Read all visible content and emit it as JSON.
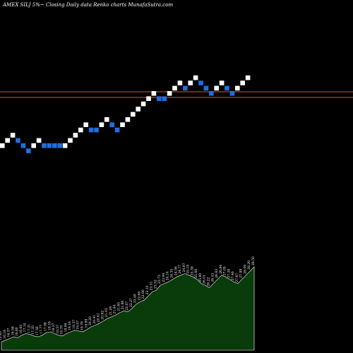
{
  "header": {
    "text": "AMEX  SILJ 5%~  Closing Daily data  Renko  charts MunafaSutra.com"
  },
  "chart_data": {
    "type": "renko",
    "colors": {
      "up": "#ffffff",
      "down": "#1e6fe0",
      "reference_lines": "#c8641e",
      "volume_fill": "#0a3b0a",
      "volume_stroke": "#ffffff"
    },
    "reference_lines": [
      {
        "price_level": 0.62
      },
      {
        "price_level": 0.594
      }
    ],
    "bricks": [
      {
        "dir": "up",
        "level": 0
      },
      {
        "dir": "up",
        "level": 1
      },
      {
        "dir": "up",
        "level": 2
      },
      {
        "dir": "down",
        "level": 1
      },
      {
        "dir": "down",
        "level": 0
      },
      {
        "dir": "down",
        "level": -1
      },
      {
        "dir": "up",
        "level": 0
      },
      {
        "dir": "up",
        "level": 1
      },
      {
        "dir": "down",
        "level": 0
      },
      {
        "dir": "down",
        "level": 0
      },
      {
        "dir": "down",
        "level": 0
      },
      {
        "dir": "down",
        "level": 0
      },
      {
        "dir": "up",
        "level": 0
      },
      {
        "dir": "up",
        "level": 1
      },
      {
        "dir": "up",
        "level": 2
      },
      {
        "dir": "up",
        "level": 3
      },
      {
        "dir": "up",
        "level": 4
      },
      {
        "dir": "down",
        "level": 3
      },
      {
        "dir": "down",
        "level": 3
      },
      {
        "dir": "up",
        "level": 4
      },
      {
        "dir": "up",
        "level": 5
      },
      {
        "dir": "down",
        "level": 4
      },
      {
        "dir": "down",
        "level": 3
      },
      {
        "dir": "up",
        "level": 4
      },
      {
        "dir": "up",
        "level": 5
      },
      {
        "dir": "up",
        "level": 6
      },
      {
        "dir": "up",
        "level": 7
      },
      {
        "dir": "up",
        "level": 8
      },
      {
        "dir": "up",
        "level": 9
      },
      {
        "dir": "up",
        "level": 10
      },
      {
        "dir": "down",
        "level": 9
      },
      {
        "dir": "down",
        "level": 9
      },
      {
        "dir": "up",
        "level": 10
      },
      {
        "dir": "up",
        "level": 11
      },
      {
        "dir": "up",
        "level": 12
      },
      {
        "dir": "down",
        "level": 11
      },
      {
        "dir": "up",
        "level": 12
      },
      {
        "dir": "up",
        "level": 13
      },
      {
        "dir": "down",
        "level": 12
      },
      {
        "dir": "down",
        "level": 11
      },
      {
        "dir": "down",
        "level": 10
      },
      {
        "dir": "up",
        "level": 11
      },
      {
        "dir": "up",
        "level": 12
      },
      {
        "dir": "down",
        "level": 11
      },
      {
        "dir": "down",
        "level": 10
      },
      {
        "dir": "up",
        "level": 11
      },
      {
        "dir": "up",
        "level": 12
      },
      {
        "dir": "up",
        "level": 13
      }
    ],
    "volume_panel": {
      "values": [
        0.1,
        0.12,
        0.14,
        0.16,
        0.15,
        0.18,
        0.2,
        0.19,
        0.17,
        0.16,
        0.18,
        0.21,
        0.22,
        0.2,
        0.18,
        0.17,
        0.2,
        0.22,
        0.24,
        0.23,
        0.22,
        0.25,
        0.28,
        0.3,
        0.32,
        0.35,
        0.38,
        0.4,
        0.42,
        0.45,
        0.47,
        0.46,
        0.5,
        0.55,
        0.58,
        0.6,
        0.65,
        0.7,
        0.72,
        0.78,
        0.8,
        0.82,
        0.85,
        0.88,
        0.9,
        0.92,
        0.9,
        0.88,
        0.85,
        0.8,
        0.78,
        0.75,
        0.8,
        0.85,
        0.9,
        0.88,
        0.85,
        0.82,
        0.8,
        0.85,
        0.9,
        0.95,
        1.0
      ],
      "value_labels": [
        "15.95",
        "16.16",
        "16.37",
        "16.58",
        "16.80",
        "16.93",
        "17.10",
        "17.21",
        "17.35",
        "17.56",
        "17.77",
        "17.98",
        "18.16",
        "18.37",
        "18.57",
        "18.78",
        "18.99",
        "19.16",
        "19.37",
        "19.57",
        "19.78",
        "19.99",
        "20.20",
        "20.41",
        "20.61",
        "20.82",
        "21.03",
        "21.24",
        "21.44",
        "21.65",
        "21.86",
        "22.07",
        "22.27",
        "22.48",
        "22.69",
        "22.90",
        "23.10",
        "23.31",
        "23.52",
        "23.73",
        "23.94",
        "24.14",
        "24.35",
        "24.56",
        "24.77",
        "24.97",
        "25.18",
        "25.39",
        "25.60",
        "25.80",
        "26.01",
        "26.22",
        "26.43",
        "26.63",
        "26.84",
        "27.05",
        "27.26",
        "27.46",
        "27.67",
        "27.88",
        "28.09",
        "28.29",
        "28.50"
      ]
    }
  }
}
